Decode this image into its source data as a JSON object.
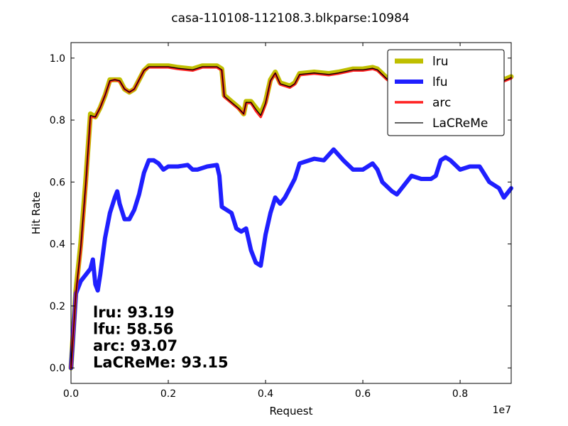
{
  "chart_data": {
    "type": "line",
    "title": "casa-110108-112108.3.blkparse:10984",
    "xlabel": "Request",
    "ylabel": "Hit Rate",
    "x_offset_label": "1e7",
    "xlim": [
      0,
      0.905
    ],
    "ylim": [
      -0.05,
      1.05
    ],
    "x_ticks": [
      0.0,
      0.2,
      0.4,
      0.6,
      0.8
    ],
    "x_tick_labels": [
      "0.0",
      "0.2",
      "0.4",
      "0.6",
      "0.8"
    ],
    "y_ticks": [
      0.0,
      0.2,
      0.4,
      0.6,
      0.8,
      1.0
    ],
    "y_tick_labels": [
      "0.0",
      "0.2",
      "0.4",
      "0.6",
      "0.8",
      "1.0"
    ],
    "grid": false,
    "legend_position": "top-right",
    "series": [
      {
        "name": "lru",
        "color": "#bfbf00",
        "points": [
          [
            0,
            0
          ],
          [
            0.01,
            0.25
          ],
          [
            0.02,
            0.4
          ],
          [
            0.03,
            0.6
          ],
          [
            0.04,
            0.82
          ],
          [
            0.05,
            0.81
          ],
          [
            0.06,
            0.84
          ],
          [
            0.07,
            0.88
          ],
          [
            0.08,
            0.93
          ],
          [
            0.09,
            0.93
          ],
          [
            0.1,
            0.93
          ],
          [
            0.11,
            0.9
          ],
          [
            0.12,
            0.89
          ],
          [
            0.13,
            0.9
          ],
          [
            0.14,
            0.93
          ],
          [
            0.15,
            0.96
          ],
          [
            0.16,
            0.975
          ],
          [
            0.18,
            0.975
          ],
          [
            0.2,
            0.975
          ],
          [
            0.22,
            0.97
          ],
          [
            0.25,
            0.965
          ],
          [
            0.27,
            0.975
          ],
          [
            0.3,
            0.975
          ],
          [
            0.31,
            0.965
          ],
          [
            0.315,
            0.88
          ],
          [
            0.33,
            0.86
          ],
          [
            0.345,
            0.84
          ],
          [
            0.355,
            0.82
          ],
          [
            0.36,
            0.86
          ],
          [
            0.37,
            0.86
          ],
          [
            0.38,
            0.84
          ],
          [
            0.39,
            0.82
          ],
          [
            0.4,
            0.86
          ],
          [
            0.41,
            0.93
          ],
          [
            0.42,
            0.955
          ],
          [
            0.43,
            0.92
          ],
          [
            0.45,
            0.91
          ],
          [
            0.46,
            0.92
          ],
          [
            0.47,
            0.95
          ],
          [
            0.5,
            0.955
          ],
          [
            0.53,
            0.95
          ],
          [
            0.55,
            0.955
          ],
          [
            0.58,
            0.965
          ],
          [
            0.6,
            0.965
          ],
          [
            0.62,
            0.97
          ],
          [
            0.63,
            0.965
          ],
          [
            0.65,
            0.935
          ],
          [
            0.66,
            0.925
          ],
          [
            0.68,
            0.95
          ],
          [
            0.7,
            0.955
          ],
          [
            0.73,
            0.96
          ],
          [
            0.76,
            0.965
          ],
          [
            0.78,
            0.97
          ],
          [
            0.8,
            0.97
          ],
          [
            0.83,
            0.965
          ],
          [
            0.86,
            0.96
          ],
          [
            0.88,
            0.955
          ],
          [
            0.89,
            0.93
          ],
          [
            0.905,
            0.94
          ]
        ]
      },
      {
        "name": "lfu",
        "color": "#1f1fff",
        "points": [
          [
            0,
            0
          ],
          [
            0.01,
            0.24
          ],
          [
            0.02,
            0.28
          ],
          [
            0.03,
            0.3
          ],
          [
            0.04,
            0.32
          ],
          [
            0.045,
            0.35
          ],
          [
            0.05,
            0.27
          ],
          [
            0.055,
            0.25
          ],
          [
            0.06,
            0.3
          ],
          [
            0.07,
            0.42
          ],
          [
            0.08,
            0.5
          ],
          [
            0.09,
            0.55
          ],
          [
            0.095,
            0.57
          ],
          [
            0.1,
            0.53
          ],
          [
            0.11,
            0.48
          ],
          [
            0.12,
            0.48
          ],
          [
            0.13,
            0.51
          ],
          [
            0.14,
            0.56
          ],
          [
            0.15,
            0.63
          ],
          [
            0.16,
            0.67
          ],
          [
            0.17,
            0.67
          ],
          [
            0.18,
            0.66
          ],
          [
            0.19,
            0.64
          ],
          [
            0.2,
            0.65
          ],
          [
            0.22,
            0.65
          ],
          [
            0.24,
            0.655
          ],
          [
            0.25,
            0.64
          ],
          [
            0.26,
            0.64
          ],
          [
            0.28,
            0.65
          ],
          [
            0.3,
            0.655
          ],
          [
            0.305,
            0.62
          ],
          [
            0.31,
            0.52
          ],
          [
            0.33,
            0.5
          ],
          [
            0.34,
            0.45
          ],
          [
            0.35,
            0.44
          ],
          [
            0.36,
            0.45
          ],
          [
            0.37,
            0.38
          ],
          [
            0.38,
            0.34
          ],
          [
            0.39,
            0.33
          ],
          [
            0.4,
            0.43
          ],
          [
            0.41,
            0.5
          ],
          [
            0.42,
            0.55
          ],
          [
            0.43,
            0.53
          ],
          [
            0.44,
            0.55
          ],
          [
            0.45,
            0.58
          ],
          [
            0.46,
            0.61
          ],
          [
            0.47,
            0.66
          ],
          [
            0.48,
            0.665
          ],
          [
            0.5,
            0.675
          ],
          [
            0.52,
            0.67
          ],
          [
            0.54,
            0.705
          ],
          [
            0.56,
            0.67
          ],
          [
            0.58,
            0.64
          ],
          [
            0.6,
            0.64
          ],
          [
            0.62,
            0.66
          ],
          [
            0.63,
            0.64
          ],
          [
            0.64,
            0.6
          ],
          [
            0.66,
            0.57
          ],
          [
            0.67,
            0.56
          ],
          [
            0.69,
            0.6
          ],
          [
            0.7,
            0.62
          ],
          [
            0.72,
            0.61
          ],
          [
            0.74,
            0.61
          ],
          [
            0.75,
            0.62
          ],
          [
            0.76,
            0.67
          ],
          [
            0.77,
            0.68
          ],
          [
            0.78,
            0.67
          ],
          [
            0.8,
            0.64
          ],
          [
            0.82,
            0.65
          ],
          [
            0.84,
            0.65
          ],
          [
            0.86,
            0.6
          ],
          [
            0.88,
            0.58
          ],
          [
            0.89,
            0.55
          ],
          [
            0.9,
            0.57
          ],
          [
            0.905,
            0.58
          ]
        ]
      },
      {
        "name": "arc",
        "color": "#ff2020",
        "points": [
          [
            0,
            0
          ],
          [
            0.01,
            0.24
          ],
          [
            0.02,
            0.38
          ],
          [
            0.03,
            0.58
          ],
          [
            0.04,
            0.81
          ],
          [
            0.05,
            0.81
          ],
          [
            0.06,
            0.84
          ],
          [
            0.07,
            0.88
          ],
          [
            0.08,
            0.925
          ],
          [
            0.09,
            0.93
          ],
          [
            0.1,
            0.925
          ],
          [
            0.11,
            0.9
          ],
          [
            0.12,
            0.89
          ],
          [
            0.13,
            0.9
          ],
          [
            0.14,
            0.93
          ],
          [
            0.15,
            0.96
          ],
          [
            0.16,
            0.97
          ],
          [
            0.18,
            0.97
          ],
          [
            0.2,
            0.97
          ],
          [
            0.22,
            0.965
          ],
          [
            0.25,
            0.96
          ],
          [
            0.27,
            0.97
          ],
          [
            0.3,
            0.97
          ],
          [
            0.31,
            0.96
          ],
          [
            0.315,
            0.875
          ],
          [
            0.33,
            0.855
          ],
          [
            0.345,
            0.835
          ],
          [
            0.355,
            0.82
          ],
          [
            0.36,
            0.855
          ],
          [
            0.37,
            0.855
          ],
          [
            0.38,
            0.83
          ],
          [
            0.39,
            0.81
          ],
          [
            0.4,
            0.85
          ],
          [
            0.41,
            0.925
          ],
          [
            0.42,
            0.95
          ],
          [
            0.43,
            0.915
          ],
          [
            0.45,
            0.905
          ],
          [
            0.46,
            0.915
          ],
          [
            0.47,
            0.945
          ],
          [
            0.5,
            0.95
          ],
          [
            0.53,
            0.945
          ],
          [
            0.55,
            0.95
          ],
          [
            0.58,
            0.96
          ],
          [
            0.6,
            0.96
          ],
          [
            0.62,
            0.965
          ],
          [
            0.63,
            0.96
          ],
          [
            0.65,
            0.93
          ],
          [
            0.66,
            0.92
          ],
          [
            0.68,
            0.945
          ],
          [
            0.7,
            0.95
          ],
          [
            0.73,
            0.955
          ],
          [
            0.76,
            0.96
          ],
          [
            0.78,
            0.965
          ],
          [
            0.8,
            0.965
          ],
          [
            0.83,
            0.96
          ],
          [
            0.86,
            0.955
          ],
          [
            0.88,
            0.95
          ],
          [
            0.89,
            0.925
          ],
          [
            0.905,
            0.935
          ]
        ]
      },
      {
        "name": "LaCReMe",
        "color": "#000000",
        "points": [
          [
            0,
            0
          ],
          [
            0.01,
            0.24
          ],
          [
            0.02,
            0.39
          ],
          [
            0.03,
            0.59
          ],
          [
            0.04,
            0.815
          ],
          [
            0.05,
            0.81
          ],
          [
            0.06,
            0.84
          ],
          [
            0.07,
            0.88
          ],
          [
            0.08,
            0.927
          ],
          [
            0.09,
            0.93
          ],
          [
            0.1,
            0.927
          ],
          [
            0.11,
            0.9
          ],
          [
            0.12,
            0.89
          ],
          [
            0.13,
            0.9
          ],
          [
            0.14,
            0.93
          ],
          [
            0.15,
            0.96
          ],
          [
            0.16,
            0.972
          ],
          [
            0.18,
            0.972
          ],
          [
            0.2,
            0.972
          ],
          [
            0.22,
            0.967
          ],
          [
            0.25,
            0.962
          ],
          [
            0.27,
            0.972
          ],
          [
            0.3,
            0.972
          ],
          [
            0.31,
            0.962
          ],
          [
            0.315,
            0.877
          ],
          [
            0.33,
            0.857
          ],
          [
            0.345,
            0.837
          ],
          [
            0.355,
            0.82
          ],
          [
            0.36,
            0.857
          ],
          [
            0.37,
            0.857
          ],
          [
            0.38,
            0.835
          ],
          [
            0.39,
            0.815
          ],
          [
            0.4,
            0.855
          ],
          [
            0.41,
            0.927
          ],
          [
            0.42,
            0.952
          ],
          [
            0.43,
            0.917
          ],
          [
            0.45,
            0.907
          ],
          [
            0.46,
            0.917
          ],
          [
            0.47,
            0.947
          ],
          [
            0.5,
            0.952
          ],
          [
            0.53,
            0.947
          ],
          [
            0.55,
            0.952
          ],
          [
            0.58,
            0.962
          ],
          [
            0.6,
            0.962
          ],
          [
            0.62,
            0.967
          ],
          [
            0.63,
            0.962
          ],
          [
            0.65,
            0.932
          ],
          [
            0.66,
            0.922
          ],
          [
            0.68,
            0.947
          ],
          [
            0.7,
            0.952
          ],
          [
            0.73,
            0.957
          ],
          [
            0.76,
            0.962
          ],
          [
            0.78,
            0.967
          ],
          [
            0.8,
            0.967
          ],
          [
            0.83,
            0.962
          ],
          [
            0.86,
            0.957
          ],
          [
            0.88,
            0.952
          ],
          [
            0.89,
            0.927
          ],
          [
            0.905,
            0.937
          ]
        ]
      }
    ],
    "annotations": [
      {
        "label": "lru:",
        "value": "93.19"
      },
      {
        "label": "lfu:",
        "value": "58.56"
      },
      {
        "label": "arc:",
        "value": "93.07"
      },
      {
        "label": "LaCReMe:",
        "value": "93.15"
      }
    ]
  }
}
